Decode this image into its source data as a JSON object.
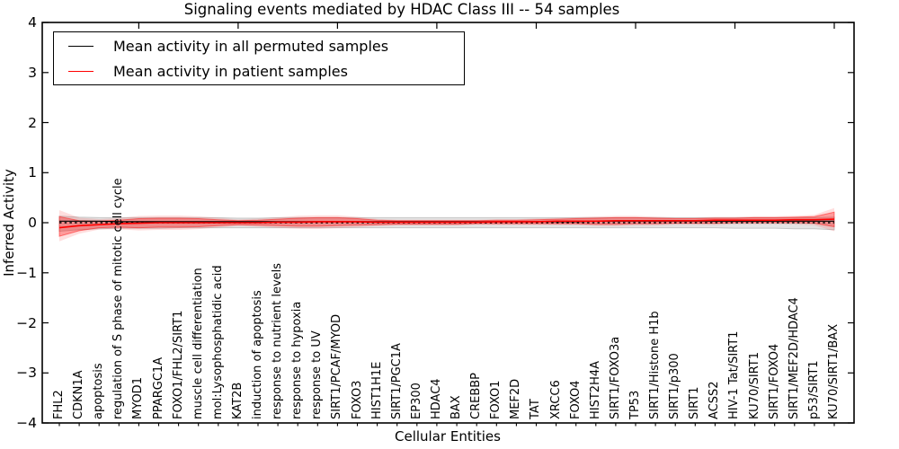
{
  "chart_data": {
    "type": "line",
    "title": "Signaling events mediated by HDAC Class III -- 54 samples",
    "xlabel": "Cellular Entities",
    "ylabel": "Inferred Activity",
    "ylim": [
      -4,
      4
    ],
    "yticks": [
      4,
      3,
      2,
      1,
      0,
      -1,
      -2,
      -3,
      -4
    ],
    "grid": false,
    "legend_position": "upper left",
    "zero_line": "dashed black line at y=0 across data range",
    "categories": [
      "FHL2",
      "CDKN1A",
      "apoptosis",
      "regulation of S phase of mitotic cell cycle",
      "MYOD1",
      "PPARGC1A",
      "FOXO1/FHL2/SIRT1",
      "muscle cell differentiation",
      "mol:Lysophosphatidic acid",
      "KAT2B",
      "induction of apoptosis",
      "response to nutrient levels",
      "response to hypoxia",
      "response to UV",
      "SIRT1/PCAF/MYOD",
      "FOXO3",
      "HIST1H1E",
      "SIRT1/PGC1A",
      "EP300",
      "HDAC4",
      "BAX",
      "CREBBP",
      "FOXO1",
      "MEF2D",
      "TAT",
      "XRCC6",
      "FOXO4",
      "HIST2H4A",
      "SIRT1/FOXO3a",
      "TP53",
      "SIRT1/Histone H1b",
      "SIRT1/p300",
      "SIRT1",
      "ACSS2",
      "HIV-1 Tat/SIRT1",
      "KU70/SIRT1",
      "SIRT1/FOXO4",
      "SIRT1/MEF2D/HDAC4",
      "p53/SIRT1",
      "KU70/SIRT1/BAX"
    ],
    "series": [
      {
        "name": "Mean activity in all permuted samples",
        "color": "#000000",
        "band_fill": "#e3e3e3",
        "band_edge": "#c6c6c6",
        "values": [
          0.03,
          0.03,
          0.03,
          0.02,
          0.02,
          0.02,
          0.02,
          0.02,
          0.02,
          0.02,
          0.02,
          0.02,
          0.02,
          0.02,
          0.02,
          0.02,
          0.02,
          0.02,
          0.02,
          0.02,
          0.02,
          0.02,
          0.02,
          0.02,
          0.02,
          0.02,
          0.02,
          0.03,
          0.03,
          0.03,
          0.03,
          0.03,
          0.03,
          0.03,
          0.03,
          0.03,
          0.03,
          0.03,
          0.03,
          0.03
        ],
        "band_upper": [
          0.13,
          0.11,
          0.1,
          0.1,
          0.1,
          0.1,
          0.1,
          0.1,
          0.1,
          0.09,
          0.09,
          0.1,
          0.1,
          0.1,
          0.1,
          0.1,
          0.1,
          0.1,
          0.1,
          0.1,
          0.1,
          0.1,
          0.1,
          0.1,
          0.1,
          0.1,
          0.1,
          0.1,
          0.1,
          0.1,
          0.1,
          0.1,
          0.1,
          0.1,
          0.1,
          0.1,
          0.1,
          0.1,
          0.1,
          0.11
        ],
        "band_lower": [
          -0.17,
          -0.14,
          -0.12,
          -0.11,
          -0.11,
          -0.11,
          -0.1,
          -0.1,
          -0.1,
          -0.1,
          -0.1,
          -0.1,
          -0.1,
          -0.1,
          -0.1,
          -0.1,
          -0.1,
          -0.1,
          -0.1,
          -0.1,
          -0.1,
          -0.1,
          -0.1,
          -0.1,
          -0.1,
          -0.1,
          -0.1,
          -0.1,
          -0.1,
          -0.1,
          -0.1,
          -0.1,
          -0.1,
          -0.1,
          -0.11,
          -0.11,
          -0.11,
          -0.12,
          -0.12,
          -0.14
        ]
      },
      {
        "name": "Mean activity in patient samples",
        "color": "#ff0000",
        "band_fill": "rgba(255,0,0,0.30)",
        "band_edge": "rgba(255,0,0,0.45)",
        "values": [
          -0.1,
          -0.06,
          -0.04,
          -0.02,
          -0.01,
          0.0,
          0.0,
          0.0,
          0.0,
          0.0,
          0.0,
          0.01,
          0.01,
          0.02,
          0.02,
          0.02,
          0.01,
          0.01,
          0.01,
          0.01,
          0.01,
          0.01,
          0.02,
          0.02,
          0.02,
          0.03,
          0.03,
          0.03,
          0.04,
          0.04,
          0.04,
          0.04,
          0.04,
          0.05,
          0.05,
          0.05,
          0.05,
          0.06,
          0.06,
          0.07
        ],
        "band_upper": [
          0.12,
          0.04,
          0.03,
          0.05,
          0.08,
          0.09,
          0.09,
          0.08,
          0.06,
          0.04,
          0.05,
          0.07,
          0.09,
          0.1,
          0.1,
          0.08,
          0.05,
          0.04,
          0.04,
          0.04,
          0.04,
          0.04,
          0.05,
          0.05,
          0.06,
          0.07,
          0.08,
          0.09,
          0.1,
          0.1,
          0.09,
          0.08,
          0.08,
          0.09,
          0.09,
          0.1,
          0.1,
          0.11,
          0.12,
          0.21
        ],
        "band_lower": [
          -0.27,
          -0.16,
          -0.1,
          -0.09,
          -0.1,
          -0.09,
          -0.09,
          -0.08,
          -0.06,
          -0.04,
          -0.05,
          -0.06,
          -0.07,
          -0.07,
          -0.06,
          -0.05,
          -0.04,
          -0.03,
          -0.03,
          -0.03,
          -0.03,
          -0.02,
          -0.02,
          -0.02,
          -0.02,
          -0.02,
          -0.02,
          -0.03,
          -0.03,
          -0.02,
          -0.02,
          -0.01,
          -0.01,
          -0.01,
          0.0,
          0.0,
          0.0,
          0.0,
          -0.01,
          -0.08
        ]
      }
    ]
  }
}
